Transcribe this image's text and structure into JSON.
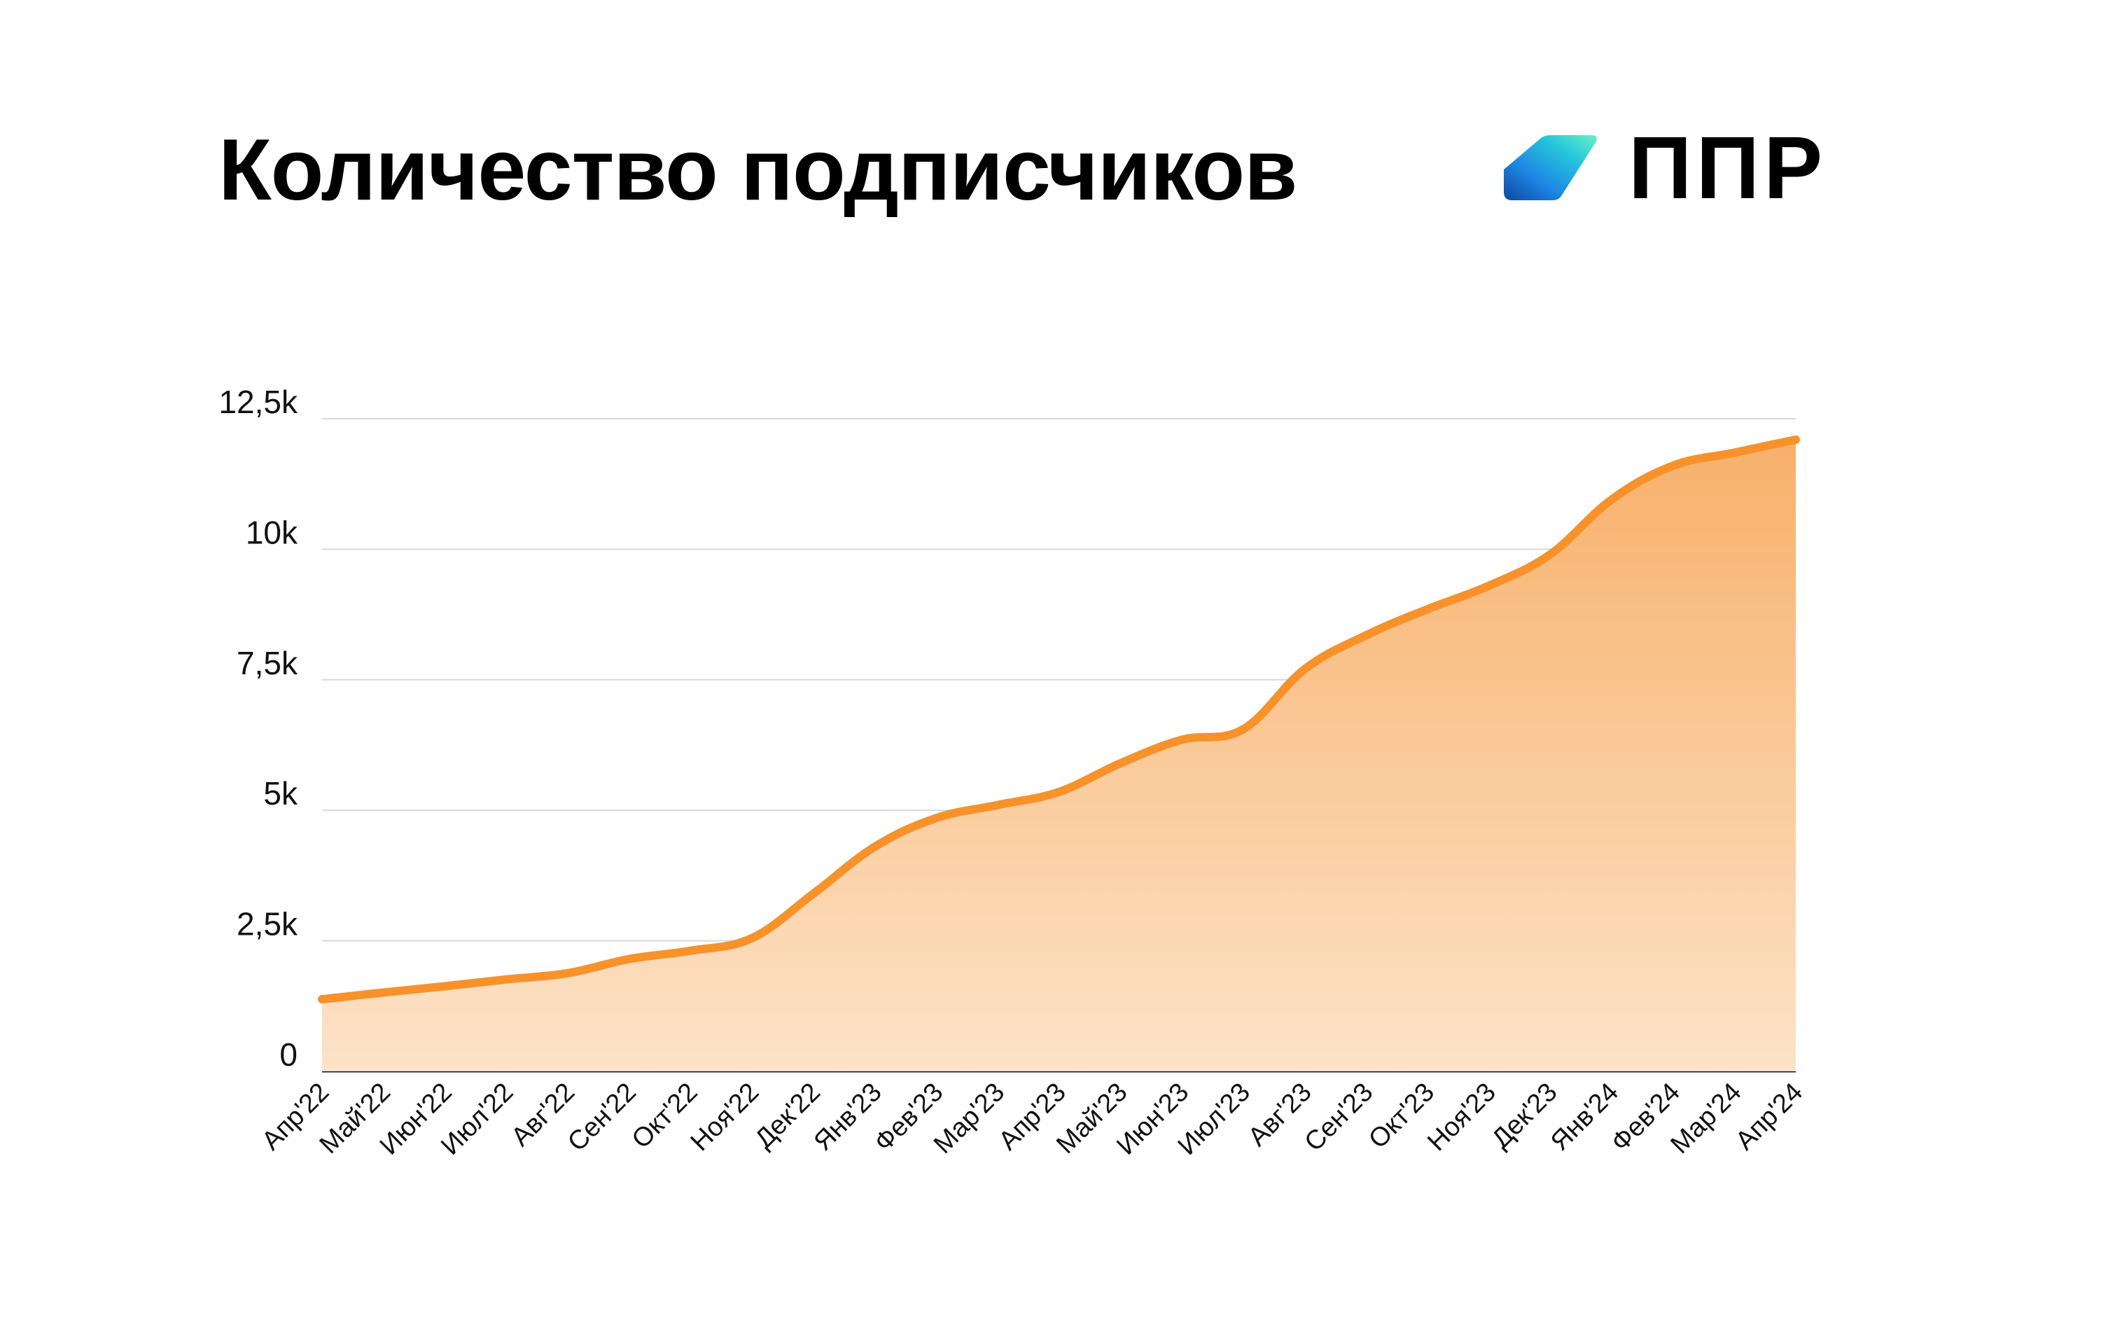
{
  "title": "Количество подписчиков",
  "logo": {
    "text": "ППР",
    "gradient": [
      "#1565c0",
      "#1e88e5",
      "#26c6da",
      "#5ef0c0"
    ]
  },
  "colors": {
    "line": "#f7922a",
    "fill_top": "#f7b06a",
    "fill_bottom": "#fde3c8",
    "grid": "#d9d9d9"
  },
  "chart_data": {
    "type": "area",
    "title": "Количество подписчиков",
    "xlabel": "",
    "ylabel": "",
    "ylim": [
      0,
      12500
    ],
    "grid": true,
    "yticks": [
      {
        "value": 0,
        "label": "0"
      },
      {
        "value": 2500,
        "label": "2,5k"
      },
      {
        "value": 5000,
        "label": "5k"
      },
      {
        "value": 7500,
        "label": "7,5k"
      },
      {
        "value": 10000,
        "label": "10k"
      },
      {
        "value": 12500,
        "label": "12,5k"
      }
    ],
    "categories": [
      "Апр'22",
      "Май'22",
      "Июн'22",
      "Июл'22",
      "Авг'22",
      "Сен'22",
      "Окт'22",
      "Ноя'22",
      "Дек'22",
      "Янв'23",
      "Фев'23",
      "Мар'23",
      "Апр'23",
      "Май'23",
      "Июн'23",
      "Июл'23",
      "Авг'23",
      "Сен'23",
      "Окт'23",
      "Ноя'23",
      "Дек'23",
      "Янв'24",
      "Фев'24",
      "Мар'24",
      "Апр'24"
    ],
    "series": [
      {
        "values": [
          1380,
          1510,
          1630,
          1760,
          1880,
          2150,
          2310,
          2550,
          3400,
          4300,
          4850,
          5100,
          5350,
          5900,
          6350,
          6550,
          7700,
          8350,
          8850,
          9300,
          9900,
          10950,
          11600,
          11850,
          12100
        ]
      }
    ]
  }
}
